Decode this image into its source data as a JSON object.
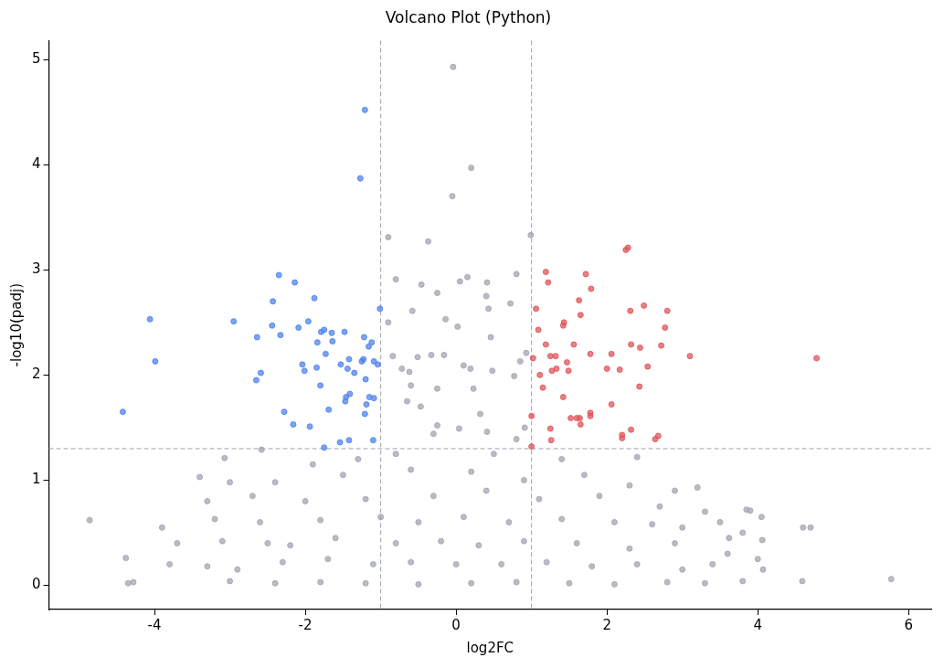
{
  "chart_data": {
    "type": "scatter",
    "title": "Volcano Plot (Python)",
    "xlabel": "log2FC",
    "ylabel": "-log10(padj)",
    "xlim": [
      -5.4,
      6.3
    ],
    "ylim": [
      -0.23,
      5.18
    ],
    "xticks": [
      -4,
      -2,
      0,
      2,
      4,
      6
    ],
    "yticks": [
      0,
      1,
      2,
      3,
      4,
      5
    ],
    "grid": false,
    "legend": false,
    "marker": "circle",
    "ref_lines": [
      {
        "axis": "x",
        "value": -1,
        "color": "#9ca3af",
        "line_style": "dashed"
      },
      {
        "axis": "x",
        "value": 1,
        "color": "#9ca3af",
        "line_style": "dashed"
      },
      {
        "axis": "y",
        "value": 1.3,
        "color": "#9ca3af",
        "line_style": "dashed"
      }
    ],
    "series": [
      {
        "color": "#a1a5b0",
        "x": [
          -0.04,
          0.2,
          -0.05,
          0.99,
          -0.9,
          -0.37,
          -4.86,
          5.77,
          4.6,
          4.59,
          4.06,
          4.07,
          3.85,
          3.62,
          -0.8,
          -0.58,
          -0.46,
          -0.25,
          0.05,
          0.15,
          0.41,
          0.43,
          0.72,
          0.8,
          0.4,
          0.46,
          0.23,
          0.32,
          -0.6,
          -0.25,
          -0.84,
          -0.72,
          -0.62,
          -0.51,
          -0.33,
          -0.16,
          -0.14,
          0.02,
          0.19,
          0.1,
          0.48,
          0.77,
          0.85,
          0.93,
          -0.9,
          -0.65,
          -0.47,
          -0.25,
          -0.3,
          0.04,
          0.41,
          0.8,
          0.91,
          -2.58,
          -3.07,
          -0.8,
          0.5,
          1.4,
          2.4,
          -1.9,
          -1.3,
          3.2,
          -3.4,
          -3.0,
          -2.4,
          -1.5,
          -0.6,
          0.2,
          0.9,
          1.7,
          2.3,
          2.9,
          3.9,
          4.05,
          -3.3,
          -2.7,
          -2.0,
          -1.2,
          -0.3,
          0.4,
          1.1,
          1.9,
          2.7,
          3.3,
          3.8,
          -3.9,
          -3.2,
          -2.6,
          -1.8,
          -1.0,
          -0.5,
          0.1,
          0.7,
          1.4,
          2.1,
          2.6,
          3.0,
          3.5,
          4.7,
          -3.7,
          -3.1,
          -2.5,
          -2.2,
          -1.6,
          -0.8,
          -0.2,
          0.3,
          0.9,
          1.6,
          2.3,
          2.9,
          3.6,
          4.0,
          -4.38,
          -3.8,
          -3.3,
          -2.9,
          -2.3,
          -1.7,
          -1.1,
          -0.6,
          0.0,
          0.6,
          1.2,
          1.8,
          2.4,
          3.0,
          3.4,
          -4.35,
          -4.28,
          -3.0,
          -2.4,
          -1.8,
          -1.2,
          -0.5,
          0.2,
          0.8,
          1.5,
          2.1,
          2.8,
          3.3,
          3.8
        ],
        "values": [
          4.93,
          3.97,
          3.7,
          3.33,
          3.31,
          3.27,
          0.62,
          0.06,
          0.55,
          0.04,
          0.43,
          0.15,
          0.72,
          0.45,
          2.91,
          2.61,
          2.86,
          2.78,
          2.89,
          2.93,
          2.88,
          2.63,
          2.68,
          2.96,
          2.75,
          2.36,
          1.87,
          1.63,
          1.9,
          1.87,
          2.18,
          2.06,
          2.03,
          2.17,
          2.19,
          2.19,
          2.53,
          2.46,
          2.06,
          2.09,
          2.04,
          1.99,
          2.13,
          2.21,
          2.5,
          1.75,
          1.7,
          1.52,
          1.44,
          1.49,
          1.46,
          1.39,
          1.5,
          1.29,
          1.21,
          1.25,
          1.25,
          1.2,
          1.22,
          1.15,
          1.2,
          0.93,
          1.03,
          0.98,
          0.98,
          1.05,
          1.1,
          1.08,
          1.0,
          1.05,
          0.95,
          0.9,
          0.71,
          0.65,
          0.8,
          0.85,
          0.8,
          0.82,
          0.85,
          0.9,
          0.82,
          0.85,
          0.75,
          0.7,
          0.5,
          0.55,
          0.63,
          0.6,
          0.62,
          0.65,
          0.6,
          0.65,
          0.6,
          0.63,
          0.6,
          0.58,
          0.55,
          0.6,
          0.55,
          0.4,
          0.42,
          0.4,
          0.38,
          0.45,
          0.4,
          0.42,
          0.38,
          0.42,
          0.4,
          0.35,
          0.4,
          0.3,
          0.25,
          0.26,
          0.2,
          0.18,
          0.15,
          0.22,
          0.25,
          0.2,
          0.22,
          0.2,
          0.2,
          0.22,
          0.18,
          0.2,
          0.15,
          0.2,
          0.02,
          0.03,
          0.04,
          0.02,
          0.03,
          0.02,
          0.01,
          0.02,
          0.03,
          0.02,
          0.01,
          0.03,
          0.02,
          0.04
        ]
      },
      {
        "color": "#4f83ef",
        "x": [
          -4.42,
          -4.06,
          -3.99,
          -2.95,
          -2.64,
          -2.65,
          -2.59,
          -2.35,
          -2.43,
          -2.44,
          -2.33,
          -2.28,
          -2.16,
          -2.14,
          -2.09,
          -2.04,
          -2.01,
          -1.96,
          -1.94,
          -1.88,
          -1.84,
          -1.8,
          -1.85,
          -1.79,
          -1.75,
          -1.73,
          -1.69,
          -1.65,
          -1.64,
          -1.54,
          -1.53,
          -1.48,
          -1.46,
          -1.47,
          -1.44,
          -1.41,
          -1.42,
          -1.42,
          -1.35,
          -1.27,
          -1.25,
          -1.23,
          -1.22,
          -1.21,
          -1.21,
          -1.2,
          -1.19,
          -1.16,
          -1.15,
          -1.12,
          -1.1,
          -1.09,
          -1.04,
          -1.01,
          -1.09,
          -1.75
        ],
        "values": [
          1.65,
          2.53,
          2.13,
          2.51,
          2.36,
          1.95,
          2.02,
          2.95,
          2.7,
          2.47,
          2.38,
          1.65,
          1.53,
          2.88,
          2.45,
          2.1,
          2.04,
          2.51,
          1.51,
          2.73,
          2.31,
          1.9,
          2.07,
          2.41,
          2.43,
          2.2,
          1.67,
          2.4,
          2.32,
          1.36,
          2.1,
          2.41,
          1.79,
          1.75,
          2.06,
          1.82,
          1.38,
          2.15,
          2.02,
          3.87,
          2.13,
          2.15,
          2.36,
          1.63,
          4.52,
          1.96,
          1.72,
          2.27,
          1.79,
          2.31,
          1.38,
          1.78,
          2.1,
          2.63,
          2.13,
          1.31
        ]
      },
      {
        "color": "#e05458",
        "x": [
          1.0,
          1.0,
          1.02,
          1.06,
          1.09,
          1.11,
          1.15,
          1.19,
          1.19,
          1.22,
          1.25,
          1.26,
          1.27,
          1.25,
          1.32,
          1.33,
          1.42,
          1.42,
          1.43,
          1.47,
          1.49,
          1.52,
          1.56,
          1.6,
          1.63,
          1.65,
          1.64,
          1.65,
          1.72,
          1.78,
          1.78,
          1.78,
          1.79,
          2.0,
          2.06,
          2.06,
          2.17,
          2.2,
          2.2,
          2.25,
          2.28,
          2.31,
          2.32,
          2.32,
          2.43,
          2.44,
          2.49,
          2.54,
          2.64,
          2.68,
          2.72,
          2.77,
          2.8,
          3.1,
          4.78
        ],
        "values": [
          1.32,
          1.61,
          2.16,
          2.63,
          2.43,
          2.0,
          1.88,
          2.98,
          2.29,
          2.88,
          1.49,
          1.38,
          2.04,
          2.18,
          2.18,
          2.06,
          1.79,
          2.47,
          2.5,
          2.12,
          2.04,
          1.59,
          2.29,
          1.59,
          2.71,
          2.57,
          1.59,
          1.53,
          2.96,
          2.2,
          1.64,
          1.61,
          2.82,
          2.06,
          2.2,
          1.72,
          2.05,
          1.43,
          1.4,
          3.19,
          3.21,
          2.61,
          2.29,
          1.48,
          1.89,
          2.26,
          2.66,
          2.08,
          1.39,
          1.42,
          2.28,
          2.45,
          2.61,
          2.18,
          2.16
        ]
      }
    ]
  }
}
